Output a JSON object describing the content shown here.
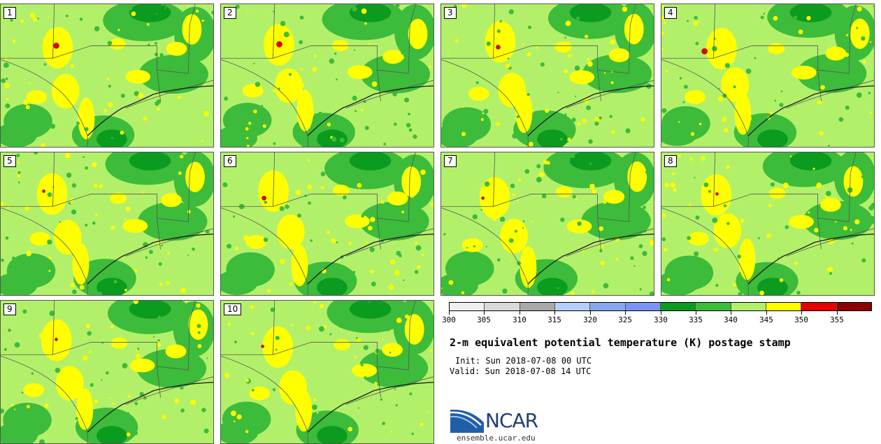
{
  "panels": [
    {
      "label": "1",
      "hot": [
        {
          "kind": "red",
          "size": "large"
        }
      ]
    },
    {
      "label": "2",
      "hot": [
        {
          "kind": "red",
          "size": "large"
        }
      ]
    },
    {
      "label": "3",
      "hot": [
        {
          "kind": "red",
          "size": "medium"
        }
      ]
    },
    {
      "label": "4",
      "hot": [
        {
          "kind": "red",
          "size": "large"
        }
      ]
    },
    {
      "label": "5",
      "hot": [
        {
          "kind": "red",
          "size": "small"
        }
      ]
    },
    {
      "label": "6",
      "hot": [
        {
          "kind": "red",
          "size": "medium"
        }
      ]
    },
    {
      "label": "7",
      "hot": [
        {
          "kind": "red",
          "size": "small"
        }
      ]
    },
    {
      "label": "8",
      "hot": [
        {
          "kind": "red",
          "size": "small"
        }
      ]
    },
    {
      "label": "9",
      "hot": [
        {
          "kind": "red",
          "size": "small"
        }
      ]
    },
    {
      "label": "10",
      "hot": [
        {
          "kind": "red",
          "size": "small"
        }
      ]
    }
  ],
  "colorbar": {
    "colors": [
      "#f0f0f0",
      "#d9d9d9",
      "#a8a8a8",
      "#b5cffa",
      "#8aa8ef",
      "#7b93f5",
      "#0a9b1f",
      "#3cbc3a",
      "#b2f06a",
      "#ffff00",
      "#e60000",
      "#8b0000"
    ],
    "ticks": [
      "300",
      "305",
      "310",
      "315",
      "320",
      "325",
      "330",
      "335",
      "340",
      "345",
      "350",
      "355"
    ]
  },
  "title": "2-m equivalent potential temperature (K) postage stamp",
  "init": "Init: Sun 2018-07-08 00 UTC",
  "valid": "Valid: Sun 2018-07-08 14 UTC",
  "logo": {
    "name": "NCAR",
    "url": "ensemble.ucar.edu",
    "color": "#1f3e78"
  }
}
